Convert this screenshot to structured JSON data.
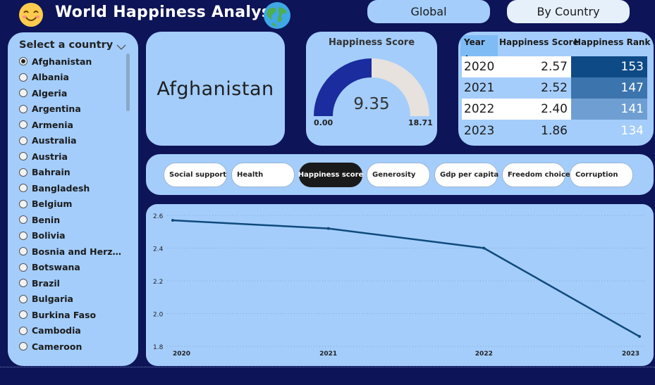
{
  "header": {
    "title": "World Happiness Analysis",
    "emoji_icon": "smiling-face-icon",
    "globe_icon": "globe-icon",
    "nav": [
      {
        "label": "Global",
        "active": false
      },
      {
        "label": "By Country",
        "active": true
      }
    ]
  },
  "slicer": {
    "title": "Select a country",
    "selected": "Afghanistan",
    "countries": [
      "Afghanistan",
      "Albania",
      "Algeria",
      "Argentina",
      "Armenia",
      "Australia",
      "Austria",
      "Bahrain",
      "Bangladesh",
      "Belgium",
      "Benin",
      "Bolivia",
      "Bosnia and Herzegov...",
      "Botswana",
      "Brazil",
      "Bulgaria",
      "Burkina Faso",
      "Cambodia",
      "Cameroon"
    ]
  },
  "country_card": {
    "name": "Afghanistan"
  },
  "gauge": {
    "title": "Happiness Score",
    "value": "9.35",
    "min": "0.00",
    "max": "18.71",
    "fill_fraction": 0.5,
    "fill_color": "#1a2c9e",
    "track_color": "#e7e2de"
  },
  "table": {
    "headers": [
      "Year",
      "Happiness Score",
      "Happiness Rank"
    ],
    "rows": [
      {
        "year": "2020",
        "score": "2.57",
        "rank": "153",
        "rank_color": "#0e4a86"
      },
      {
        "year": "2021",
        "score": "2.52",
        "rank": "147",
        "rank_color": "#3c74ad"
      },
      {
        "year": "2022",
        "score": "2.40",
        "rank": "141",
        "rank_color": "#6f9fd2"
      },
      {
        "year": "2023",
        "score": "1.86",
        "rank": "134",
        "rank_color": "#a4cdfb"
      }
    ]
  },
  "metrics": {
    "items": [
      "Social support",
      "Health",
      "Happiness score",
      "Generosity",
      "Gdp per capita",
      "Freedom choice",
      "Corruption"
    ],
    "active": "Happiness score"
  },
  "chart_data": {
    "type": "line",
    "x": [
      "2020",
      "2021",
      "2022",
      "2023"
    ],
    "series": [
      {
        "values": [
          2.57,
          2.52,
          2.4,
          1.86
        ],
        "color": "#0f4a7d"
      }
    ],
    "y_ticks": [
      "2.6",
      "2.4",
      "2.2",
      "2.0",
      "1.8"
    ],
    "ylim": [
      1.8,
      2.6
    ],
    "grid": true,
    "title": "",
    "xlabel": "",
    "ylabel": ""
  }
}
